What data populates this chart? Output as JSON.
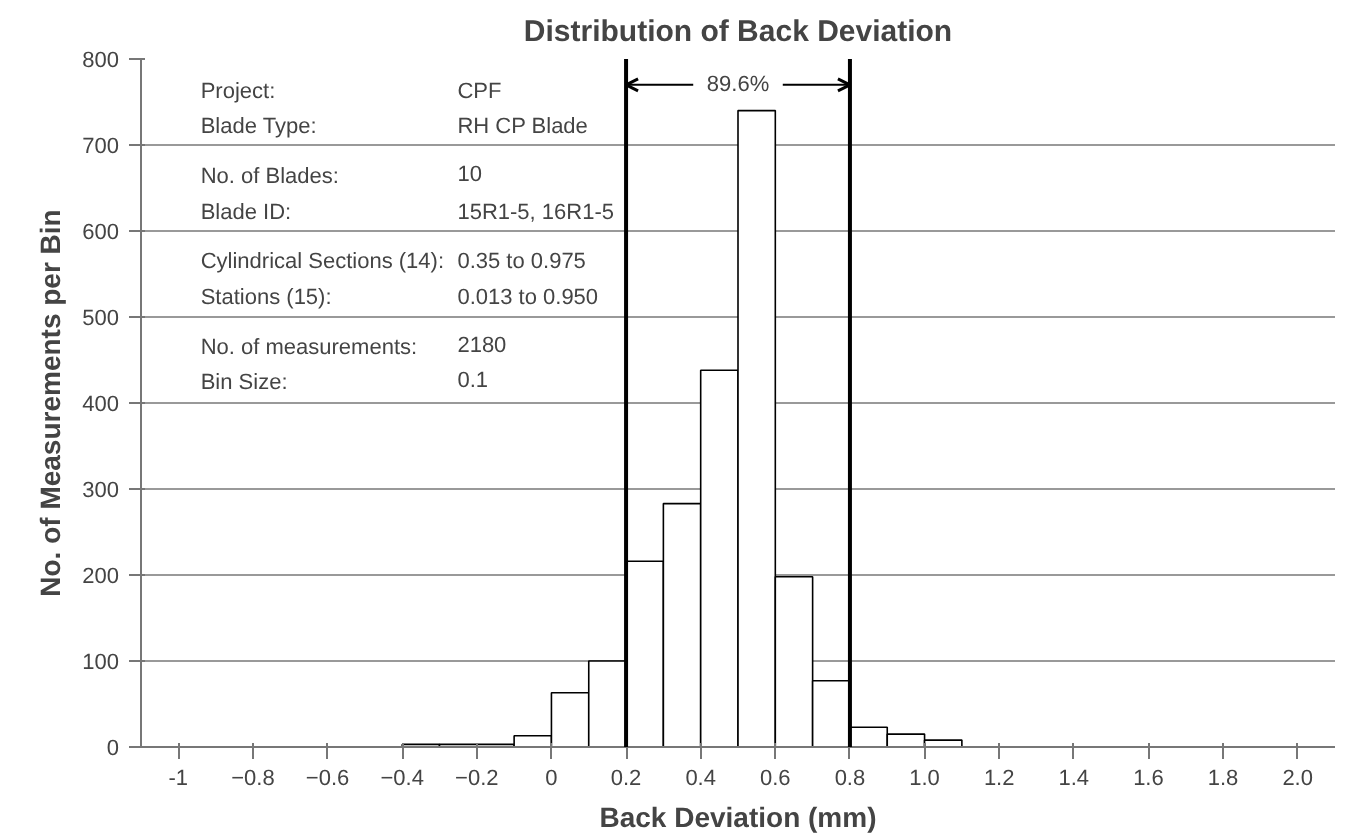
{
  "chart_data": {
    "type": "histogram",
    "title": "Distribution of Back Deviation",
    "xlabel": "Back Deviation (mm)",
    "ylabel": "No. of Measurements per Bin",
    "bins": [
      -0.4,
      -0.3,
      -0.2,
      -0.1,
      0,
      0.1,
      0.2,
      0.3,
      0.4,
      0.5,
      0.6,
      0.7,
      0.8,
      0.9,
      1.0,
      1.1
    ],
    "values": [
      3,
      3,
      3,
      13,
      63,
      100,
      216,
      283,
      438,
      740,
      198,
      77,
      23,
      15,
      8
    ],
    "color": "#ffffff",
    "xlim": [
      -1.1,
      2.1
    ],
    "xticks": [
      {
        "value": -1,
        "label": "-1"
      },
      -0.8,
      -0.6,
      -0.4,
      -0.2,
      0,
      0.2,
      0.4,
      0.6,
      0.8,
      {
        "value": 1,
        "label": "1.0"
      },
      1.2,
      1.4,
      1.6,
      1.8,
      {
        "value": 2,
        "label": "2.0"
      }
    ],
    "ylim": [
      0,
      800
    ],
    "yticks": [
      0,
      100,
      200,
      300,
      400,
      500,
      600,
      700,
      800
    ],
    "grid": "y",
    "ref_lines": [
      {
        "axis": "x",
        "value": 0.2,
        "label": null
      },
      {
        "axis": "x",
        "value": 0.8,
        "label": null
      }
    ],
    "annotations": [
      {
        "text": "89.6%",
        "x": 0.5,
        "y": 770
      },
      "Project:",
      "CPF",
      "Blade Type:",
      "RH CP Blade",
      "No. of Blades:",
      "10",
      "Blade ID:",
      "15R1-5, 16R1-5",
      "Cylindrical Sections (14):",
      "0.35 to 0.975",
      "Stations (15):",
      "0.013 to 0.950",
      "No. of measurements:",
      "2180",
      "Bin Size:",
      "0.1"
    ]
  }
}
